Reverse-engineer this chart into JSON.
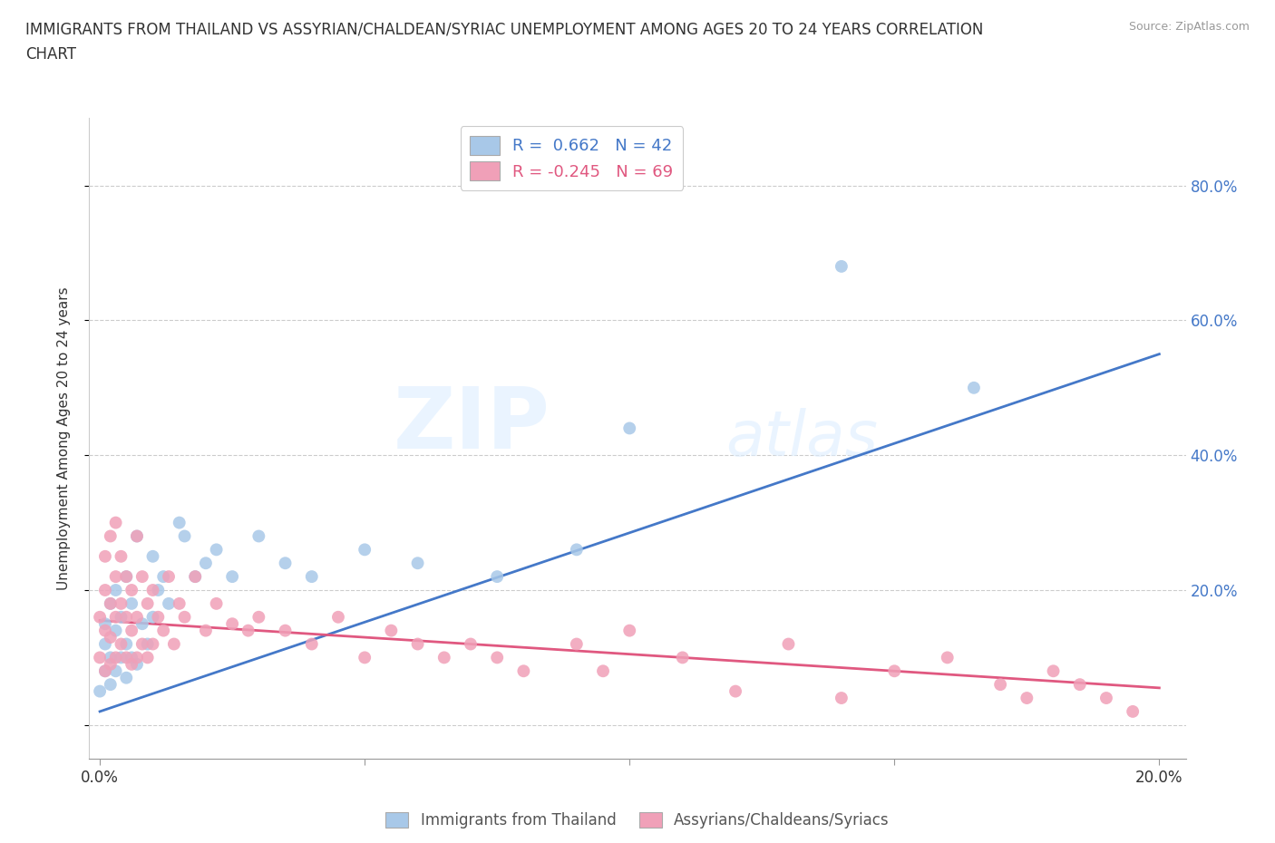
{
  "title_line1": "IMMIGRANTS FROM THAILAND VS ASSYRIAN/CHALDEAN/SYRIAC UNEMPLOYMENT AMONG AGES 20 TO 24 YEARS CORRELATION",
  "title_line2": "CHART",
  "source": "Source: ZipAtlas.com",
  "ylabel": "Unemployment Among Ages 20 to 24 years",
  "xlim": [
    -0.002,
    0.205
  ],
  "ylim": [
    -0.05,
    0.9
  ],
  "xticks": [
    0.0,
    0.05,
    0.1,
    0.15,
    0.2
  ],
  "xticklabels_show": [
    "0.0%",
    "",
    "",
    "",
    "20.0%"
  ],
  "yticks": [
    0.0,
    0.2,
    0.4,
    0.6,
    0.8
  ],
  "yticklabels": [
    "",
    "20.0%",
    "40.0%",
    "60.0%",
    "80.0%"
  ],
  "blue_color": "#a8c8e8",
  "pink_color": "#f0a0b8",
  "blue_line_color": "#4478c8",
  "pink_line_color": "#e05880",
  "R_blue": 0.662,
  "N_blue": 42,
  "R_pink": -0.245,
  "N_pink": 69,
  "legend_label_blue": "R =  0.662   N = 42",
  "legend_label_pink": "R = -0.245   N = 69",
  "watermark_zip": "ZIP",
  "watermark_atlas": "atlas",
  "bottom_label_blue": "Immigrants from Thailand",
  "bottom_label_pink": "Assyrians/Chaldeans/Syriacs",
  "blue_line_x0": 0.0,
  "blue_line_y0": 0.02,
  "blue_line_x1": 0.2,
  "blue_line_y1": 0.55,
  "pink_line_x0": 0.0,
  "pink_line_y0": 0.155,
  "pink_line_x1": 0.2,
  "pink_line_y1": 0.055,
  "blue_points_x": [
    0.0,
    0.001,
    0.001,
    0.001,
    0.002,
    0.002,
    0.002,
    0.003,
    0.003,
    0.003,
    0.004,
    0.004,
    0.005,
    0.005,
    0.005,
    0.006,
    0.006,
    0.007,
    0.007,
    0.008,
    0.009,
    0.01,
    0.01,
    0.011,
    0.012,
    0.013,
    0.015,
    0.016,
    0.018,
    0.02,
    0.022,
    0.025,
    0.03,
    0.035,
    0.04,
    0.05,
    0.06,
    0.075,
    0.09,
    0.1,
    0.14,
    0.165
  ],
  "blue_points_y": [
    0.05,
    0.08,
    0.12,
    0.15,
    0.06,
    0.1,
    0.18,
    0.08,
    0.14,
    0.2,
    0.1,
    0.16,
    0.07,
    0.12,
    0.22,
    0.1,
    0.18,
    0.09,
    0.28,
    0.15,
    0.12,
    0.16,
    0.25,
    0.2,
    0.22,
    0.18,
    0.3,
    0.28,
    0.22,
    0.24,
    0.26,
    0.22,
    0.28,
    0.24,
    0.22,
    0.26,
    0.24,
    0.22,
    0.26,
    0.44,
    0.68,
    0.5
  ],
  "pink_points_x": [
    0.0,
    0.0,
    0.001,
    0.001,
    0.001,
    0.001,
    0.002,
    0.002,
    0.002,
    0.002,
    0.003,
    0.003,
    0.003,
    0.003,
    0.004,
    0.004,
    0.004,
    0.005,
    0.005,
    0.005,
    0.006,
    0.006,
    0.006,
    0.007,
    0.007,
    0.007,
    0.008,
    0.008,
    0.009,
    0.009,
    0.01,
    0.01,
    0.011,
    0.012,
    0.013,
    0.014,
    0.015,
    0.016,
    0.018,
    0.02,
    0.022,
    0.025,
    0.028,
    0.03,
    0.035,
    0.04,
    0.045,
    0.05,
    0.055,
    0.06,
    0.065,
    0.07,
    0.075,
    0.08,
    0.09,
    0.095,
    0.1,
    0.11,
    0.12,
    0.13,
    0.14,
    0.15,
    0.16,
    0.17,
    0.175,
    0.18,
    0.185,
    0.19,
    0.195
  ],
  "pink_points_y": [
    0.1,
    0.16,
    0.08,
    0.14,
    0.2,
    0.25,
    0.09,
    0.13,
    0.18,
    0.28,
    0.1,
    0.16,
    0.22,
    0.3,
    0.12,
    0.18,
    0.25,
    0.1,
    0.16,
    0.22,
    0.09,
    0.14,
    0.2,
    0.1,
    0.16,
    0.28,
    0.12,
    0.22,
    0.1,
    0.18,
    0.12,
    0.2,
    0.16,
    0.14,
    0.22,
    0.12,
    0.18,
    0.16,
    0.22,
    0.14,
    0.18,
    0.15,
    0.14,
    0.16,
    0.14,
    0.12,
    0.16,
    0.1,
    0.14,
    0.12,
    0.1,
    0.12,
    0.1,
    0.08,
    0.12,
    0.08,
    0.14,
    0.1,
    0.05,
    0.12,
    0.04,
    0.08,
    0.1,
    0.06,
    0.04,
    0.08,
    0.06,
    0.04,
    0.02
  ],
  "background_color": "#ffffff",
  "grid_color": "#cccccc"
}
